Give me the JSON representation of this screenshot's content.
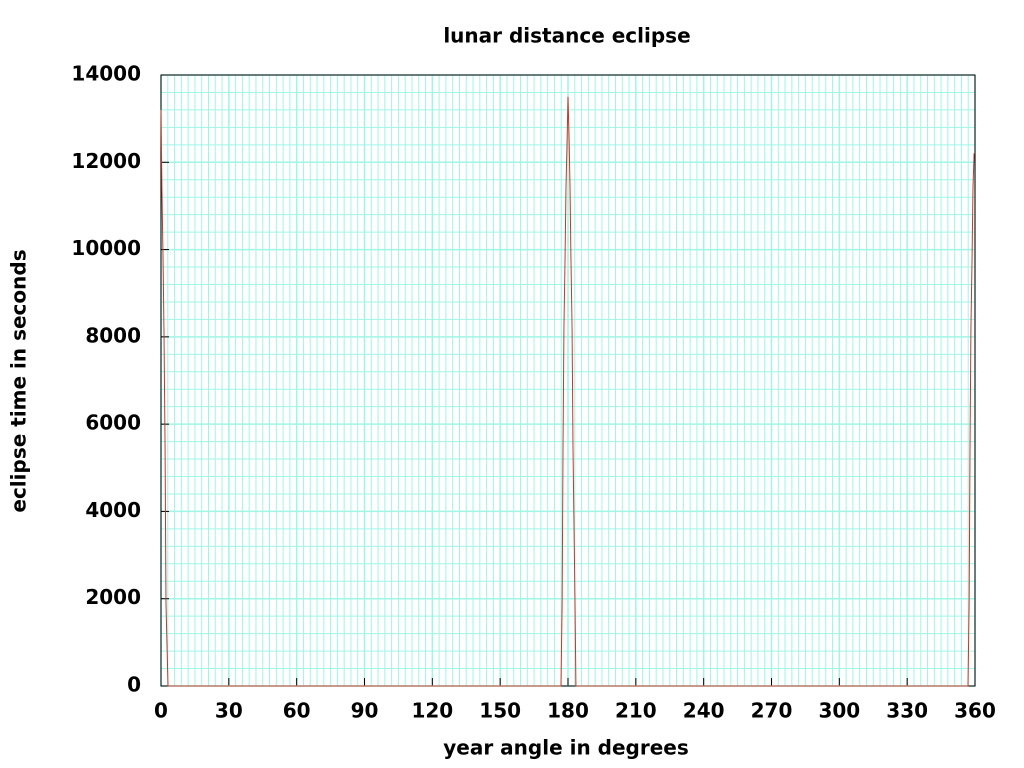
{
  "chart_data": {
    "type": "line",
    "title": "lunar distance eclipse",
    "x_label": "year angle in degrees",
    "y_label": "eclipse time in seconds",
    "x": [
      0,
      0.4,
      0.9,
      1.3,
      1.8,
      2.2,
      3.1,
      176.9,
      177.4,
      177.8,
      178.2,
      178.7,
      179.1,
      179.6,
      180,
      180.5,
      180.9,
      181.3,
      181.8,
      182.2,
      183.1,
      183.5,
      356.9,
      357.4,
      357.8,
      358.2,
      358.7,
      359.1,
      359.6,
      360
    ],
    "series": [
      {
        "color": "#c0392b",
        "values": [
          13200,
          11400,
          9800,
          8200,
          5500,
          1900,
          0,
          0,
          1900,
          5500,
          8200,
          9800,
          11400,
          12500,
          13500,
          12500,
          11400,
          9800,
          8200,
          5500,
          1900,
          0,
          0,
          1900,
          5500,
          8200,
          9800,
          11400,
          12200,
          12200
        ]
      }
    ],
    "xlim": [
      0,
      360
    ],
    "xticks": [
      0,
      30,
      60,
      90,
      120,
      150,
      180,
      210,
      240,
      270,
      300,
      330,
      360
    ],
    "ylim": [
      0,
      14000
    ],
    "yticks": [
      0,
      2000,
      4000,
      6000,
      8000,
      10000,
      12000,
      14000
    ],
    "grid": true,
    "grid_color": "#9ff5e6",
    "x_minor_divisions": 10,
    "y_minor_divisions": 5
  }
}
